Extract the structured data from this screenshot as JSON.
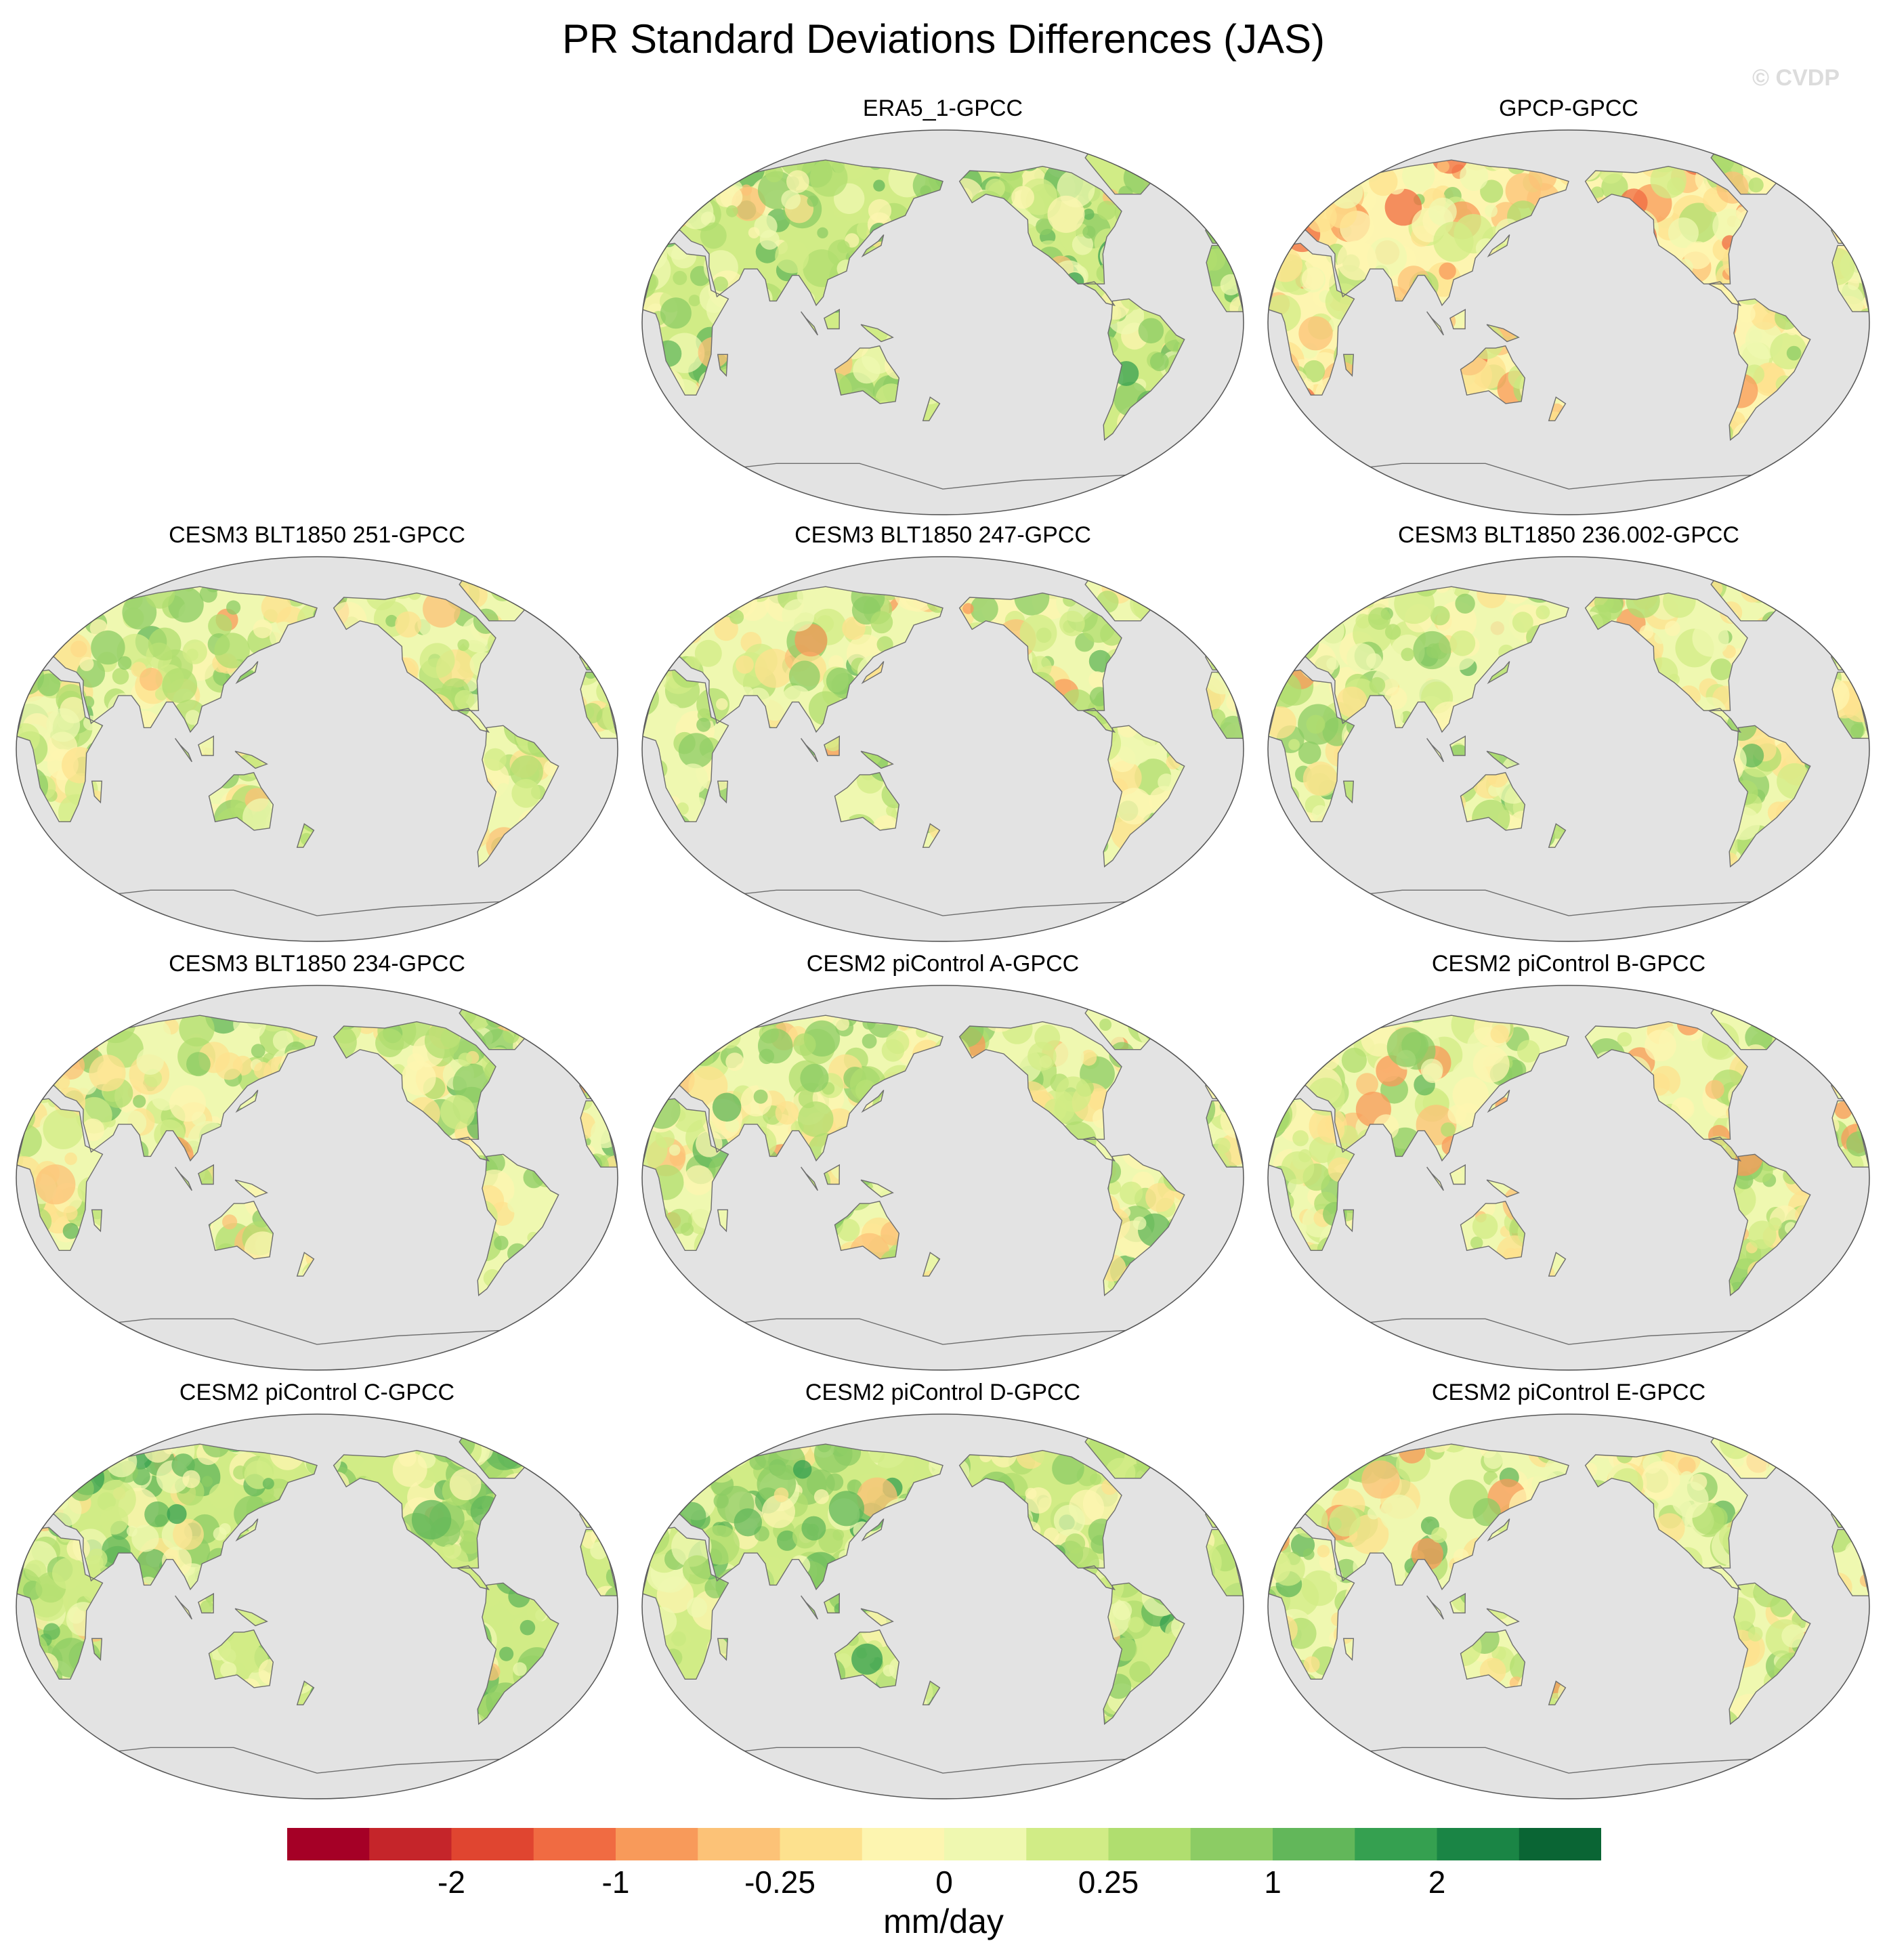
{
  "title": "PR Standard Deviations Differences (JAS)",
  "watermark": "© CVDP",
  "panels": [
    {
      "id": "era5",
      "label": "ERA5_1-GPCC",
      "row": 0,
      "col": 1
    },
    {
      "id": "gpcp",
      "label": "GPCP-GPCC",
      "row": 0,
      "col": 2
    },
    {
      "id": "c251",
      "label": "CESM3 BLT1850 251-GPCC",
      "row": 1,
      "col": 0
    },
    {
      "id": "c247",
      "label": "CESM3 BLT1850 247-GPCC",
      "row": 1,
      "col": 1
    },
    {
      "id": "c236",
      "label": "CESM3 BLT1850 236.002-GPCC",
      "row": 1,
      "col": 2
    },
    {
      "id": "c234",
      "label": "CESM3 BLT1850 234-GPCC",
      "row": 2,
      "col": 0
    },
    {
      "id": "pa",
      "label": "CESM2 piControl A-GPCC",
      "row": 2,
      "col": 1
    },
    {
      "id": "pb",
      "label": "CESM2 piControl B-GPCC",
      "row": 2,
      "col": 2
    },
    {
      "id": "pc",
      "label": "CESM2 piControl C-GPCC",
      "row": 3,
      "col": 0
    },
    {
      "id": "pd",
      "label": "CESM2 piControl D-GPCC",
      "row": 3,
      "col": 1
    },
    {
      "id": "pe",
      "label": "CESM2 piControl E-GPCC",
      "row": 3,
      "col": 2
    }
  ],
  "map_colors": {
    "ocean": "#e3e3e3",
    "coast": "#6e6e6e"
  },
  "colorbar": {
    "colors": [
      "#a50026",
      "#c5252a",
      "#e04530",
      "#f06b42",
      "#f89a5a",
      "#fcc277",
      "#fde18e",
      "#fdf5b0",
      "#eff8b0",
      "#d1ec86",
      "#b0de6f",
      "#8ccc64",
      "#62b75a",
      "#35a050",
      "#1a8545",
      "#0a6534"
    ],
    "tick_labels": [
      "-2",
      "-1",
      "-0.25",
      "0",
      "0.25",
      "1",
      "2"
    ],
    "units": "mm/day"
  }
}
